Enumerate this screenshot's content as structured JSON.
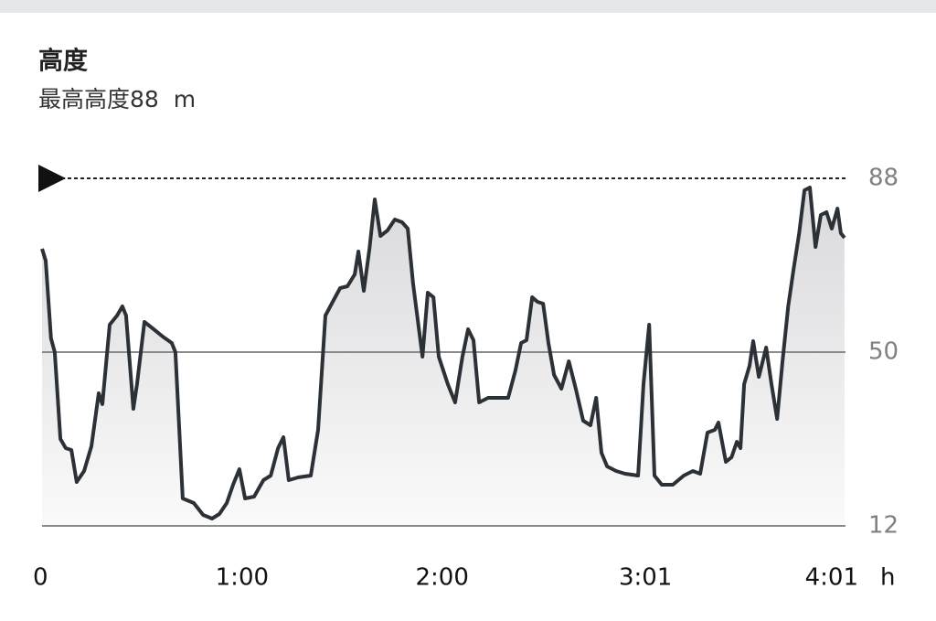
{
  "chart_data": {
    "type": "area-line",
    "title": "高度",
    "subtitle": "最高高度88  m",
    "x_unit": "h",
    "x": [
      0,
      1.1,
      2.7,
      3.8,
      5.5,
      7.1,
      8.8,
      10.4,
      12.6,
      14.8,
      17.0,
      18.1,
      20.3,
      22.5,
      24.1,
      25.2,
      27.4,
      28.5,
      30.7,
      33.5,
      36.2,
      38.9,
      40.0,
      42.2,
      45.5,
      48.3,
      51.0,
      53.2,
      55.4,
      57.3,
      59.2,
      60.9,
      63.6,
      66.4,
      68.6,
      70.8,
      72.4,
      74.0,
      76.8,
      80.6,
      82.8,
      85.0,
      87.2,
      89.4,
      91.6,
      93.8,
      94.9,
      96.5,
      98.2,
      99.8,
      101.5,
      103.6,
      105.8,
      108.0,
      109.7,
      111.3,
      114.1,
      115.7,
      117.4,
      119.0,
      121.7,
      123.9,
      126.1,
      127.8,
      129.4,
      131.1,
      133.8,
      137.6,
      139.8,
      142.0,
      143.7,
      145.3,
      147.0,
      148.6,
      150.3,
      151.9,
      153.6,
      155.8,
      158.0,
      160.1,
      162.3,
      164.5,
      166.2,
      167.8,
      169.5,
      172.2,
      174.9,
      178.8,
      180.4,
      182.1,
      183.7,
      185.9,
      189.2,
      192.5,
      195.2,
      197.4,
      199.6,
      201.8,
      202.9,
      205.1,
      206.8,
      208.4,
      209.5,
      210.6,
      212.2,
      213.3,
      215.0,
      217.2,
      218.8,
      220.5,
      222.1,
      223.8,
      225.4,
      227.1,
      228.7,
      230.3,
      232.0,
      233.6,
      235.3,
      236.9,
      238.6,
      239.6,
      240.7
    ],
    "values": [
      72.6,
      70,
      53,
      50,
      31,
      29,
      28.6,
      21.6,
      24,
      29.4,
      41,
      38.6,
      56,
      58,
      60,
      58,
      37.6,
      43,
      56.6,
      55,
      53.4,
      52,
      50,
      18,
      17,
      14.4,
      13.6,
      14.6,
      17,
      21,
      24.4,
      18,
      18.4,
      22,
      23,
      29,
      31.4,
      22,
      22.6,
      23,
      33,
      58,
      61,
      64,
      64.4,
      67,
      72,
      63.4,
      72.6,
      83.4,
      75.4,
      76.6,
      79,
      78.4,
      77,
      65,
      49,
      63,
      62,
      49,
      43,
      39,
      49,
      55,
      52.6,
      39,
      40,
      40,
      40,
      46,
      52,
      52.6,
      62,
      61,
      60.6,
      52,
      45,
      42,
      48,
      42,
      35,
      34,
      40,
      28,
      25,
      24,
      23.4,
      23,
      43,
      56,
      23,
      21,
      21,
      23,
      24,
      23.4,
      32.4,
      33,
      34.6,
      26,
      27,
      30.4,
      29,
      43,
      47,
      52.4,
      44.6,
      51,
      43,
      35.4,
      48,
      60,
      68,
      76,
      85.4,
      86,
      73,
      80,
      80.6,
      77,
      81.4,
      76,
      75
    ],
    "xlim": [
      0,
      241
    ],
    "xticks": [
      0,
      {
        "value": 60,
        "label": "1:00"
      },
      {
        "value": 120,
        "label": "2:00"
      },
      {
        "value": 181,
        "label": "3:01"
      },
      {
        "value": 241,
        "label": "4:01"
      }
    ],
    "ylim": [
      12,
      88
    ],
    "yticks": [
      12,
      50,
      88
    ],
    "reference_line": 88,
    "color": "#2b3136",
    "grid": true
  }
}
